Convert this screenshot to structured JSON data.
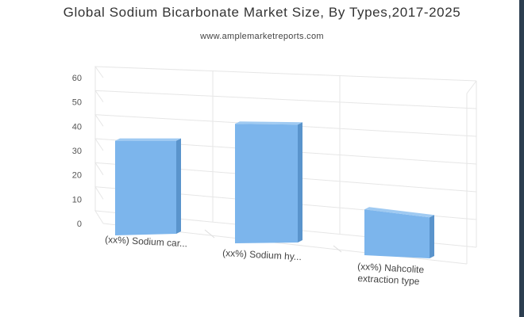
{
  "title": "Global Sodium Bicarbonate Market Size, By Types,2017-2025",
  "subtitle": "www.amplemarketreports.com",
  "colors": {
    "bar_front": "#7cb5ec",
    "bar_side": "#5a94cc",
    "bar_top": "#9fcaf2",
    "grid": "#e6e6e6",
    "right_edge_strip": "#2c3e50"
  },
  "chart_data": {
    "type": "bar",
    "categories": [
      [
        "(xx%) Sodium car..."
      ],
      [
        "(xx%) Sodium hy..."
      ],
      [
        "(xx%) Nahcolite",
        "extraction type"
      ]
    ],
    "values": [
      38,
      48,
      20
    ],
    "xlabel": "",
    "ylabel": "",
    "ylim": [
      0,
      60
    ],
    "yticks": [
      "0",
      "10",
      "20",
      "30",
      "40",
      "50",
      "60"
    ],
    "grid": true,
    "legend": "none",
    "style": "3d"
  }
}
